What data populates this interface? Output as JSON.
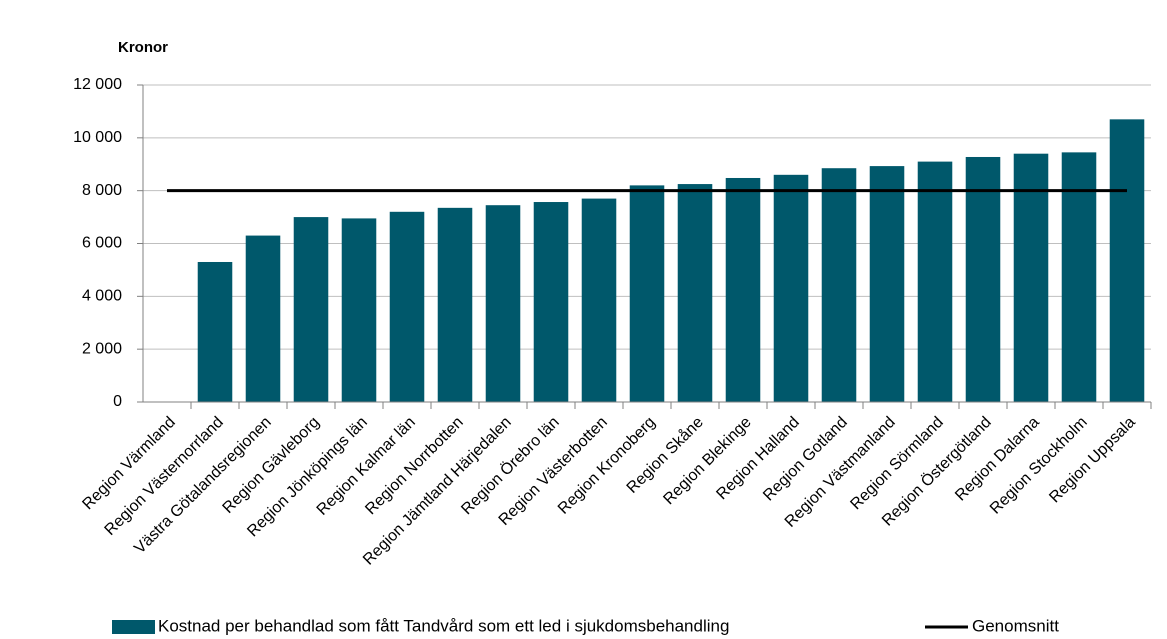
{
  "chart_data": {
    "type": "bar",
    "y_axis_label": "Kronor",
    "categories": [
      "Region Värmland",
      "Region Västernorrland",
      "Västra Götalandsregionen",
      "Region Gävleborg",
      "Region Jönköpings län",
      "Region Kalmar län",
      "Region Norrbotten",
      "Region Jämtland Härjedalen",
      "Region Örebro län",
      "Region Västerbotten",
      "Region Kronoberg",
      "Region Skåne",
      "Region Blekinge",
      "Region Halland",
      "Region Gotland",
      "Region Västmanland",
      "Region Sörmland",
      "Region Östergötland",
      "Region Dalarna",
      "Region Stockholm",
      "Region Uppsala"
    ],
    "series": [
      {
        "name": "Kostnad per behandlad som fått Tandvård som ett led i sjukdomsbehandling",
        "color": "#00586b",
        "type": "bar",
        "values": [
          null,
          5300,
          6300,
          7000,
          6950,
          7200,
          7350,
          7450,
          7570,
          7700,
          8200,
          8250,
          8480,
          8600,
          8850,
          8930,
          9100,
          9275,
          9400,
          9450,
          10700
        ]
      },
      {
        "name": "Genomsnitt",
        "color": "#000000",
        "type": "line",
        "values": [
          8000,
          8000,
          8000,
          8000,
          8000,
          8000,
          8000,
          8000,
          8000,
          8000,
          8000,
          8000,
          8000,
          8000,
          8000,
          8000,
          8000,
          8000,
          8000,
          8000,
          8000
        ]
      }
    ],
    "ylim": [
      0,
      12000
    ],
    "yticks": [
      0,
      {
        "value": 2000,
        "label": "2 000"
      },
      {
        "value": 4000,
        "label": "4 000"
      },
      {
        "value": 6000,
        "label": "6 000"
      },
      {
        "value": 8000,
        "label": "8 000"
      },
      {
        "value": 10000,
        "label": "10 000"
      },
      {
        "value": 12000,
        "label": "12 000"
      }
    ],
    "grid": true,
    "legend": "bottom"
  }
}
